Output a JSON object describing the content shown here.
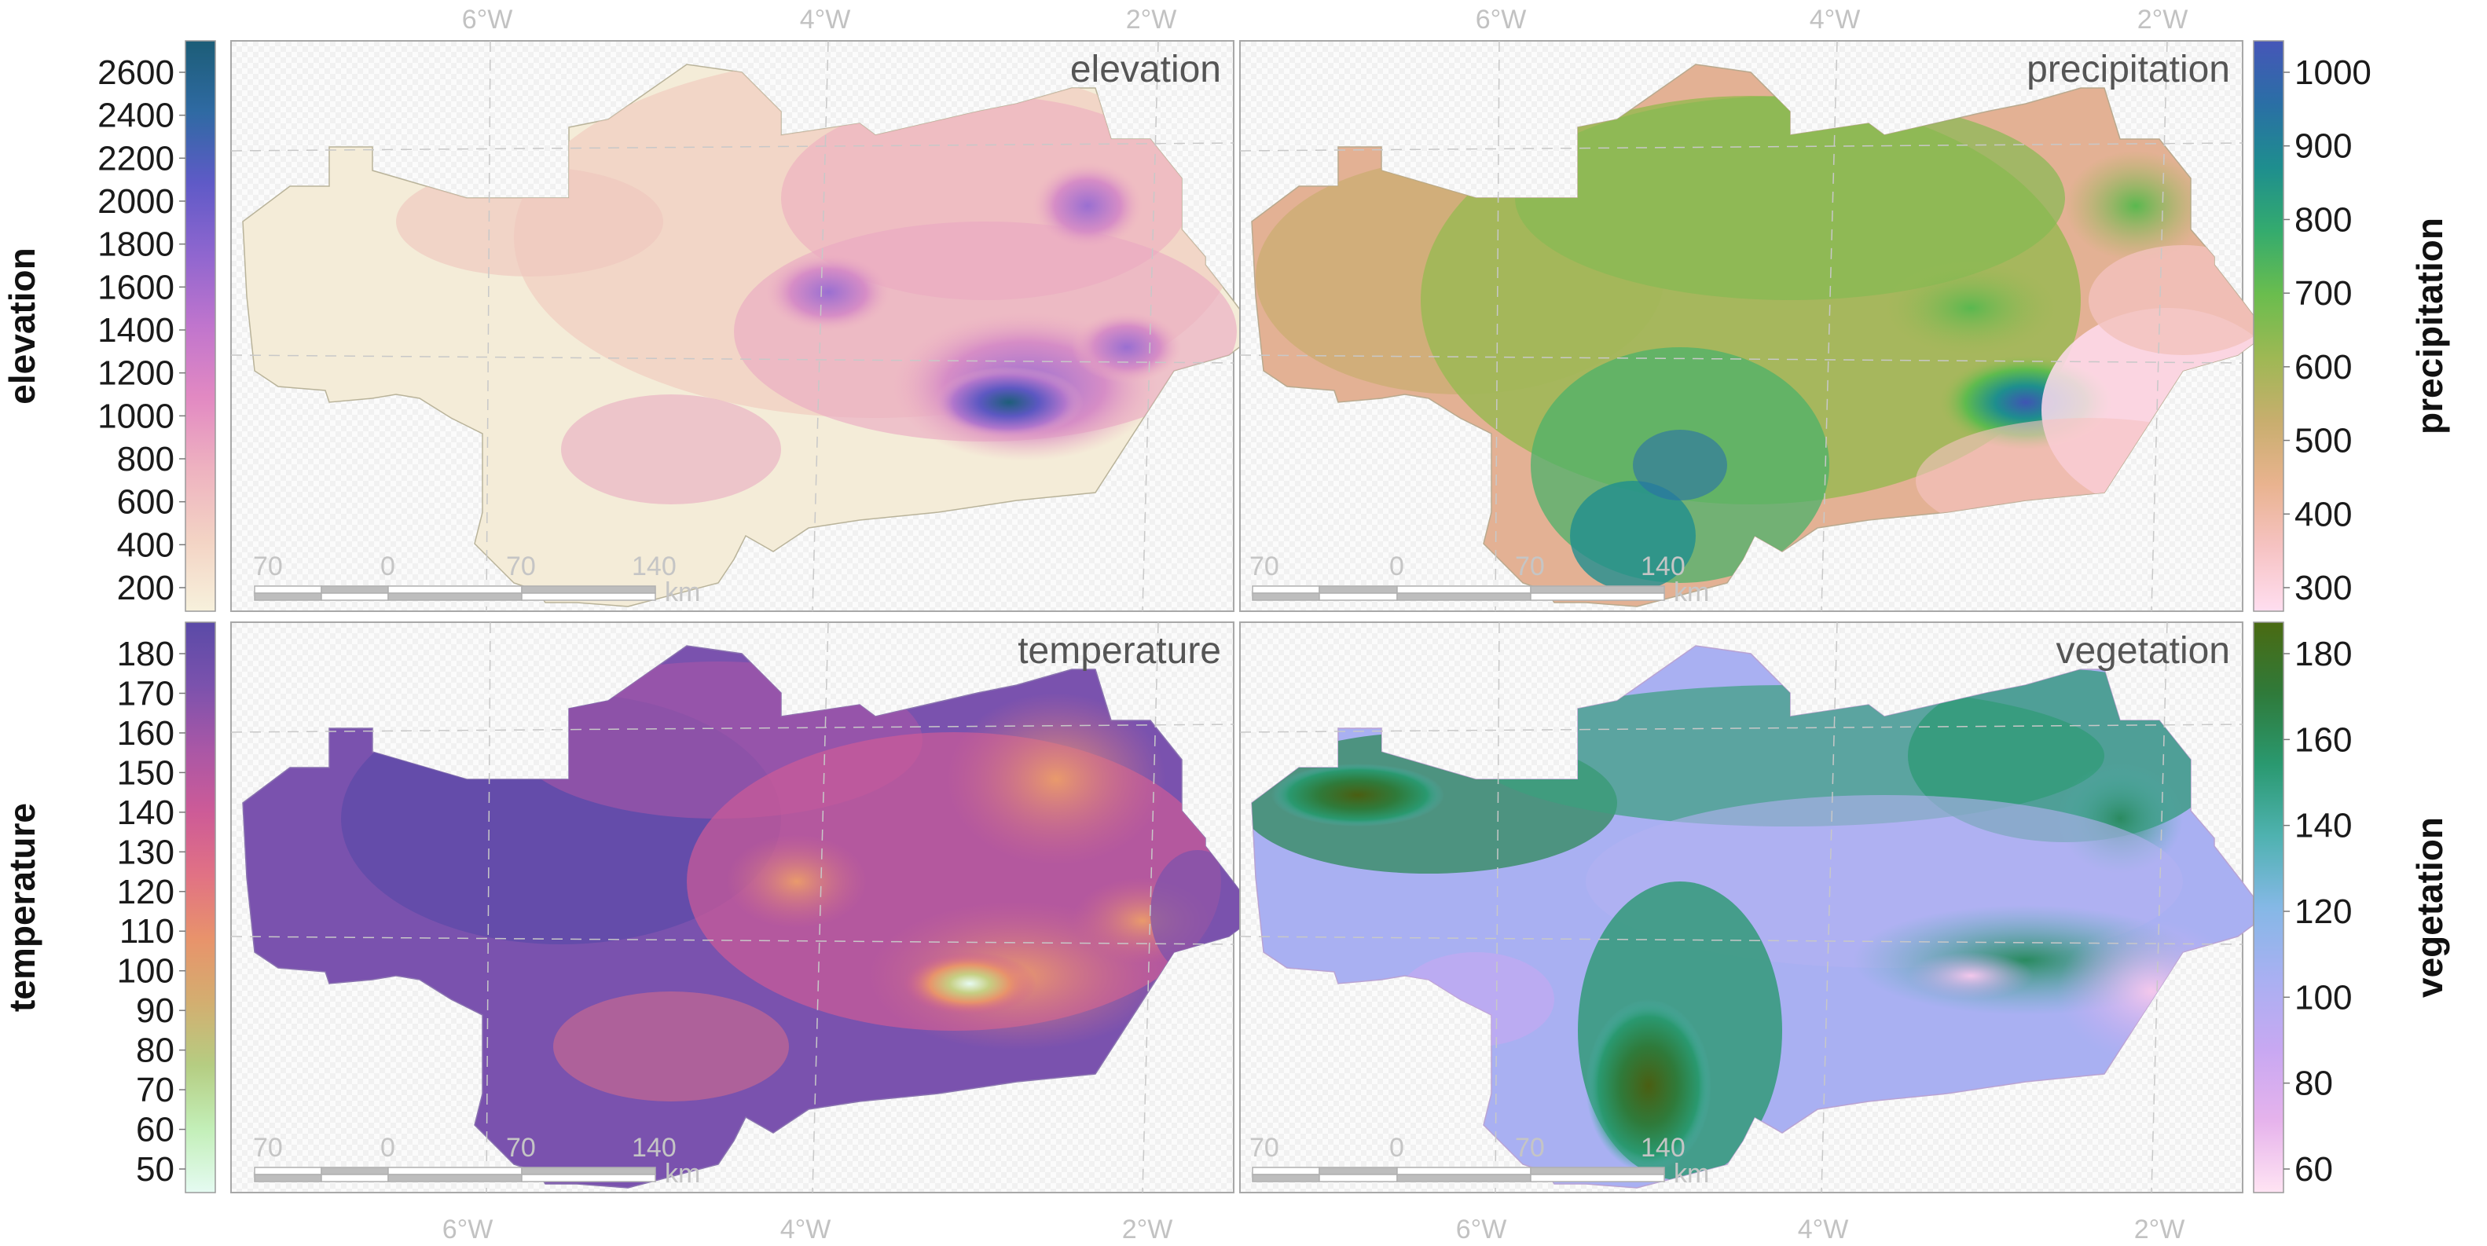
{
  "figure": {
    "axis_labels": {
      "top": [
        "6°W",
        "4°W",
        "2°W"
      ],
      "bottom": [
        "6°W",
        "4°W",
        "2°W"
      ]
    },
    "scalebar": {
      "labels": [
        "70",
        "0",
        "70",
        "140"
      ],
      "unit": "km"
    },
    "panels": [
      {
        "id": "elevation",
        "title": "elevation",
        "colorbar": {
          "side": "left",
          "label": "elevation",
          "ticks": [
            "2600",
            "2400",
            "2200",
            "2000",
            "1800",
            "1600",
            "1400",
            "1200",
            "1000",
            "800",
            "600",
            "400",
            "200"
          ],
          "colors": [
            "#f7f1dc",
            "#f3d3c4",
            "#eeb2c0",
            "#e289c2",
            "#c075cd",
            "#8f66cf",
            "#5f5ac7",
            "#2f6aa3",
            "#1c5d77"
          ]
        }
      },
      {
        "id": "precipitation",
        "title": "precipitation",
        "colorbar": {
          "side": "right",
          "label": "precipitation",
          "ticks": [
            "1000",
            "900",
            "800",
            "700",
            "600",
            "500",
            "400",
            "300"
          ],
          "colors": [
            "#ffdef0",
            "#f6c3c3",
            "#e9b38f",
            "#c8ae6e",
            "#9eb854",
            "#6abd4e",
            "#34ab6e",
            "#1e8e8e",
            "#2a6fa5",
            "#4656b8"
          ]
        }
      },
      {
        "id": "temperature",
        "title": "temperature",
        "colorbar": {
          "side": "left",
          "label": "temperature",
          "ticks": [
            "180",
            "170",
            "160",
            "150",
            "140",
            "130",
            "120",
            "110",
            "100",
            "90",
            "80",
            "70",
            "60",
            "50"
          ],
          "colors": [
            "#e5fbf2",
            "#c3efb8",
            "#b5cd82",
            "#d3ae70",
            "#e8936b",
            "#e17284",
            "#cd5b97",
            "#a957a6",
            "#7b52ad",
            "#5a4aa7"
          ]
        }
      },
      {
        "id": "vegetation",
        "title": "vegetation",
        "colorbar": {
          "side": "right",
          "label": "vegetation",
          "ticks": [
            "180",
            "160",
            "140",
            "120",
            "100",
            "80",
            "60"
          ],
          "colors": [
            "#ffe4f3",
            "#e6b3ec",
            "#c8a8f2",
            "#a9b0f2",
            "#85b8e6",
            "#4fb2b0",
            "#2a9970",
            "#2f7a3a",
            "#4a6a12"
          ]
        }
      }
    ]
  }
}
